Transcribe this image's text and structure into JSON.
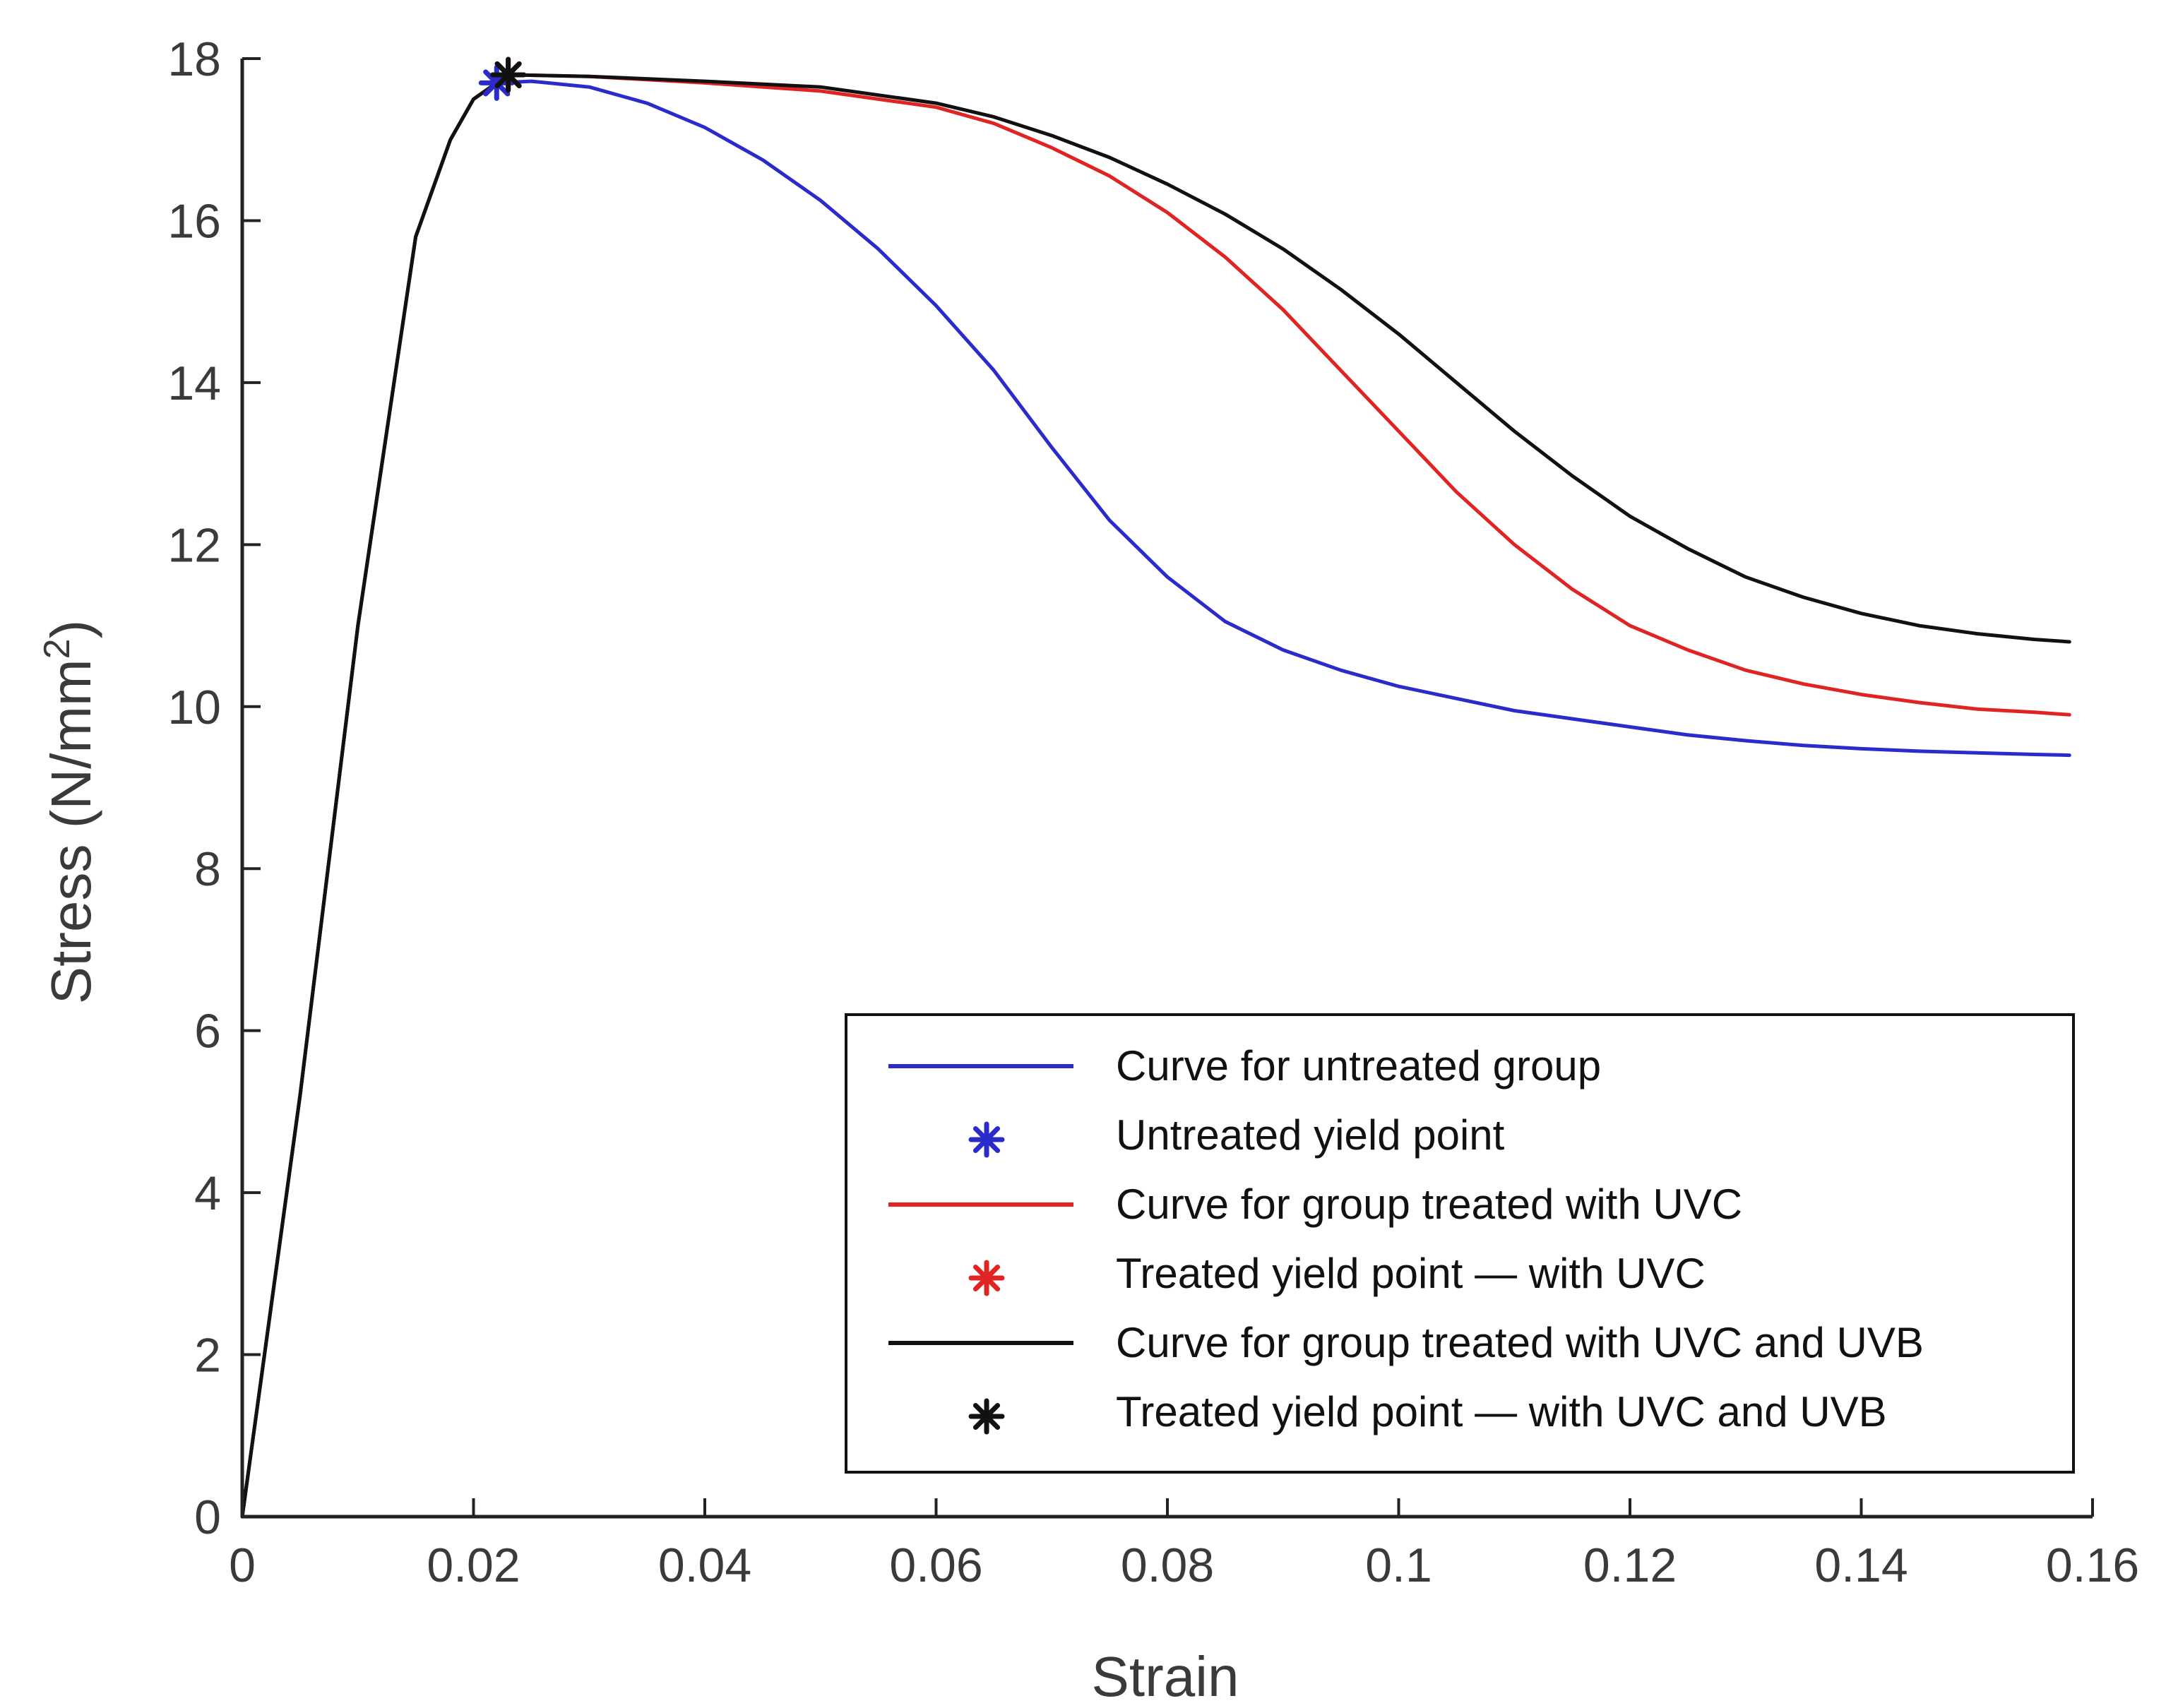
{
  "chart_data": {
    "type": "line",
    "title": "",
    "xlabel": "Strain",
    "ylabel_main": "Stress  (N/mm",
    "ylabel_sup": "2",
    "ylabel_end": ")",
    "xlim": [
      0,
      0.16
    ],
    "ylim": [
      0,
      18
    ],
    "grid": false,
    "xticks": [
      0,
      0.02,
      0.04,
      0.06,
      0.08,
      0.1,
      0.12,
      0.14,
      0.16
    ],
    "xtick_labels": [
      "0",
      "0.02",
      "0.04",
      "0.06",
      "0.08",
      "0.1",
      "0.12",
      "0.14",
      "0.16"
    ],
    "yticks": [
      0,
      2,
      4,
      6,
      8,
      10,
      12,
      14,
      16,
      18
    ],
    "ytick_labels": [
      "0",
      "2",
      "4",
      "6",
      "8",
      "10",
      "12",
      "14",
      "16",
      "18"
    ],
    "legend_position": "bottom-right",
    "series": [
      {
        "name": "Curve for untreated group",
        "kind": "line",
        "color": "#2b2bcc",
        "x": [
          0,
          0.005,
          0.01,
          0.015,
          0.018,
          0.02,
          0.022,
          0.025,
          0.03,
          0.035,
          0.04,
          0.045,
          0.05,
          0.055,
          0.06,
          0.065,
          0.07,
          0.075,
          0.08,
          0.085,
          0.09,
          0.095,
          0.1,
          0.105,
          0.11,
          0.115,
          0.12,
          0.125,
          0.13,
          0.135,
          0.14,
          0.145,
          0.15,
          0.155,
          0.158
        ],
        "y": [
          0,
          5.2,
          11.0,
          15.8,
          17.0,
          17.5,
          17.7,
          17.72,
          17.65,
          17.45,
          17.15,
          16.75,
          16.25,
          15.65,
          14.95,
          14.15,
          13.2,
          12.3,
          11.6,
          11.05,
          10.7,
          10.45,
          10.25,
          10.1,
          9.95,
          9.85,
          9.75,
          9.65,
          9.58,
          9.52,
          9.48,
          9.45,
          9.43,
          9.41,
          9.4
        ]
      },
      {
        "name": "Untreated yield point",
        "kind": "marker",
        "color": "#2b2bcc",
        "x": [
          0.022
        ],
        "y": [
          17.7
        ]
      },
      {
        "name": "Curve for group treated with UVC",
        "kind": "line",
        "color": "#e02424",
        "x": [
          0,
          0.005,
          0.01,
          0.015,
          0.018,
          0.02,
          0.023,
          0.03,
          0.04,
          0.05,
          0.06,
          0.065,
          0.07,
          0.075,
          0.08,
          0.085,
          0.09,
          0.095,
          0.1,
          0.105,
          0.11,
          0.115,
          0.12,
          0.125,
          0.13,
          0.135,
          0.14,
          0.145,
          0.15,
          0.155,
          0.158
        ],
        "y": [
          0,
          5.2,
          11.0,
          15.8,
          17.0,
          17.5,
          17.8,
          17.78,
          17.7,
          17.6,
          17.4,
          17.2,
          16.9,
          16.55,
          16.1,
          15.55,
          14.9,
          14.15,
          13.4,
          12.65,
          12.0,
          11.45,
          11.0,
          10.7,
          10.45,
          10.28,
          10.15,
          10.05,
          9.97,
          9.93,
          9.9
        ]
      },
      {
        "name": "Treated yield point — with UVC",
        "kind": "marker",
        "color": "#e02424",
        "x": [
          0.023
        ],
        "y": [
          17.8
        ]
      },
      {
        "name": "Curve for group treated with UVC and UVB",
        "kind": "line",
        "color": "#111111",
        "x": [
          0,
          0.005,
          0.01,
          0.015,
          0.018,
          0.02,
          0.023,
          0.03,
          0.04,
          0.05,
          0.06,
          0.065,
          0.07,
          0.075,
          0.08,
          0.085,
          0.09,
          0.095,
          0.1,
          0.105,
          0.11,
          0.115,
          0.12,
          0.125,
          0.13,
          0.135,
          0.14,
          0.145,
          0.15,
          0.155,
          0.158
        ],
        "y": [
          0,
          5.2,
          11.0,
          15.8,
          17.0,
          17.5,
          17.8,
          17.78,
          17.72,
          17.65,
          17.45,
          17.28,
          17.05,
          16.78,
          16.45,
          16.08,
          15.65,
          15.15,
          14.6,
          14.0,
          13.4,
          12.85,
          12.35,
          11.95,
          11.6,
          11.35,
          11.15,
          11.0,
          10.9,
          10.83,
          10.8
        ]
      },
      {
        "name": "Treated yield point — with UVC and UVB",
        "kind": "marker",
        "color": "#111111",
        "x": [
          0.023
        ],
        "y": [
          17.8
        ]
      }
    ]
  }
}
